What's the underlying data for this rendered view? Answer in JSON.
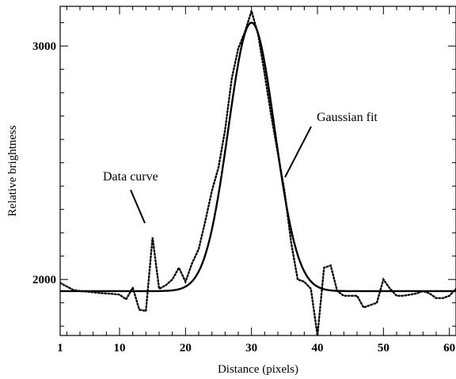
{
  "chart_data": {
    "type": "line",
    "xlabel": "Distance (pixels)",
    "ylabel": "Relative brightness",
    "xlim": [
      1,
      61
    ],
    "ylim": [
      1760,
      3170
    ],
    "x_ticks": [
      1,
      10,
      20,
      30,
      40,
      50,
      60
    ],
    "y_ticks": [
      2000,
      3000
    ],
    "grid": false,
    "series": [
      {
        "name": "Data curve",
        "style": "dotted",
        "x": [
          1,
          2,
          3,
          4,
          5,
          6,
          7,
          8,
          9,
          10,
          11,
          12,
          13,
          14,
          15,
          16,
          17,
          18,
          19,
          20,
          21,
          22,
          23,
          24,
          25,
          26,
          27,
          28,
          29,
          30,
          31,
          32,
          33,
          34,
          35,
          36,
          37,
          38,
          39,
          40,
          41,
          42,
          43,
          44,
          45,
          46,
          47,
          48,
          49,
          50,
          51,
          52,
          53,
          54,
          55,
          56,
          57,
          58,
          59,
          60,
          61
        ],
        "values": [
          1985,
          1970,
          1955,
          1950,
          1948,
          1945,
          1942,
          1940,
          1938,
          1935,
          1915,
          1965,
          1870,
          1865,
          2180,
          1960,
          1975,
          2000,
          2050,
          1990,
          2070,
          2130,
          2250,
          2380,
          2480,
          2640,
          2860,
          2990,
          3060,
          3150,
          3050,
          2880,
          2700,
          2540,
          2380,
          2160,
          2000,
          1990,
          1960,
          1760,
          2050,
          2060,
          1950,
          1930,
          1930,
          1930,
          1880,
          1890,
          1900,
          2000,
          1960,
          1930,
          1930,
          1935,
          1940,
          1950,
          1940,
          1920,
          1920,
          1930,
          1960
        ]
      },
      {
        "name": "Gaussian fit",
        "style": "solid",
        "baseline": 1950,
        "amplitude": 1150,
        "center": 30,
        "sigma": 3.5
      }
    ],
    "annotations": [
      {
        "text": "Data curve"
      },
      {
        "text": "Gaussian fit"
      }
    ]
  }
}
